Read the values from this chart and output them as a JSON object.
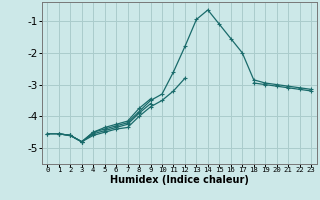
{
  "xlabel": "Humidex (Indice chaleur)",
  "background_color": "#cce8e8",
  "grid_color": "#aacccc",
  "line_color": "#1a6b6b",
  "x_ticks": [
    0,
    1,
    2,
    3,
    4,
    5,
    6,
    7,
    8,
    9,
    10,
    11,
    12,
    13,
    14,
    15,
    16,
    17,
    18,
    19,
    20,
    21,
    22,
    23
  ],
  "ylim": [
    -5.5,
    -0.4
  ],
  "xlim": [
    -0.5,
    23.5
  ],
  "yticks": [
    -5,
    -4,
    -3,
    -2,
    -1
  ],
  "series": [
    [
      null,
      -4.55,
      -4.6,
      -4.8,
      -4.5,
      -4.4,
      -4.3,
      -4.2,
      -3.85,
      -3.5,
      -3.3,
      -2.6,
      -1.8,
      -0.95,
      -0.65,
      -1.1,
      -1.55,
      -2.0,
      -2.85,
      -2.95,
      -3.0,
      -3.05,
      -3.1,
      -3.15
    ],
    [
      null,
      -4.55,
      -4.6,
      -4.8,
      -4.5,
      -4.35,
      -4.25,
      -4.15,
      -3.75,
      -3.45,
      null,
      null,
      null,
      null,
      null,
      null,
      null,
      null,
      null,
      null,
      null,
      null,
      null,
      null
    ],
    [
      -4.55,
      -4.55,
      -4.6,
      -4.8,
      -4.55,
      -4.45,
      -4.35,
      -4.25,
      -3.9,
      -3.6,
      null,
      null,
      null,
      null,
      null,
      null,
      null,
      null,
      null,
      null,
      null,
      null,
      null,
      null
    ],
    [
      -4.55,
      -4.55,
      -4.6,
      -4.8,
      -4.6,
      -4.5,
      -4.4,
      -4.35,
      -4.0,
      -3.7,
      -3.5,
      -3.2,
      -2.8,
      null,
      null,
      null,
      null,
      null,
      null,
      null,
      null,
      null,
      null,
      null
    ],
    [
      null,
      null,
      null,
      null,
      null,
      null,
      null,
      null,
      null,
      null,
      null,
      null,
      null,
      null,
      null,
      null,
      null,
      null,
      -2.95,
      -3.0,
      -3.05,
      -3.1,
      -3.15,
      -3.2
    ]
  ]
}
